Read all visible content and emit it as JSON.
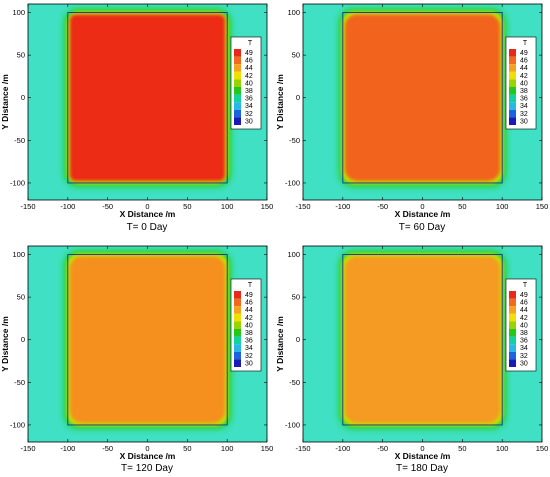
{
  "chart_data": [
    {
      "type": "heatmap",
      "caption": "T= 0 Day",
      "xlabel": "X Distance /m",
      "ylabel": "Y Distance /m",
      "xlim": [
        -150,
        150
      ],
      "ylim": [
        -120,
        110
      ],
      "xticks": [
        -150,
        -100,
        -50,
        0,
        50,
        100,
        150
      ],
      "yticks": [
        -100,
        -50,
        0,
        50,
        100
      ],
      "region": {
        "x": [
          -100,
          100
        ],
        "y": [
          -100,
          100
        ]
      },
      "interior_T": 49,
      "background_T": 36,
      "legend": {
        "title": "T",
        "levels": [
          49,
          46,
          44,
          42,
          40,
          38,
          36,
          34,
          32,
          30
        ]
      },
      "interior_color": "#ec2c14"
    },
    {
      "type": "heatmap",
      "caption": "T= 60 Day",
      "xlabel": "X Distance /m",
      "ylabel": "Y Distance /m",
      "xlim": [
        -150,
        150
      ],
      "ylim": [
        -120,
        110
      ],
      "xticks": [
        -150,
        -100,
        -50,
        0,
        50,
        100,
        150
      ],
      "yticks": [
        -100,
        -50,
        0,
        50,
        100
      ],
      "region": {
        "x": [
          -100,
          100
        ],
        "y": [
          -100,
          100
        ]
      },
      "interior_T": 48,
      "background_T": 36,
      "legend": {
        "title": "T",
        "levels": [
          49,
          46,
          44,
          42,
          40,
          38,
          36,
          34,
          32,
          30
        ]
      },
      "interior_color": "#f2641e"
    },
    {
      "type": "heatmap",
      "caption": "T= 120 Day",
      "xlabel": "X Distance /m",
      "ylabel": "Y Distance /m",
      "xlim": [
        -150,
        150
      ],
      "ylim": [
        -120,
        110
      ],
      "xticks": [
        -150,
        -100,
        -50,
        0,
        50,
        100,
        150
      ],
      "yticks": [
        -100,
        -50,
        0,
        50,
        100
      ],
      "region": {
        "x": [
          -100,
          100
        ],
        "y": [
          -100,
          100
        ]
      },
      "interior_T": 47,
      "background_T": 36,
      "legend": {
        "title": "T",
        "levels": [
          49,
          46,
          44,
          42,
          40,
          38,
          36,
          34,
          32,
          30
        ]
      },
      "interior_color": "#f5901e"
    },
    {
      "type": "heatmap",
      "caption": "T= 180 Day",
      "xlabel": "X Distance /m",
      "ylabel": "Y Distance /m",
      "xlim": [
        -150,
        150
      ],
      "ylim": [
        -120,
        110
      ],
      "xticks": [
        -150,
        -100,
        -50,
        0,
        50,
        100,
        150
      ],
      "yticks": [
        -100,
        -50,
        0,
        50,
        100
      ],
      "region": {
        "x": [
          -100,
          100
        ],
        "y": [
          -100,
          100
        ]
      },
      "interior_T": 46.5,
      "background_T": 36,
      "legend": {
        "title": "T",
        "levels": [
          49,
          46,
          44,
          42,
          40,
          38,
          36,
          34,
          32,
          30
        ]
      },
      "interior_color": "#f59a22"
    }
  ],
  "colors": {
    "background": "#40e0c4",
    "legend_scale": [
      "#e8281a",
      "#f26a1e",
      "#f7a21e",
      "#f0e000",
      "#9ad400",
      "#22c81c",
      "#10d4a0",
      "#28b8e8",
      "#1a64e0",
      "#1a1ab8"
    ]
  }
}
